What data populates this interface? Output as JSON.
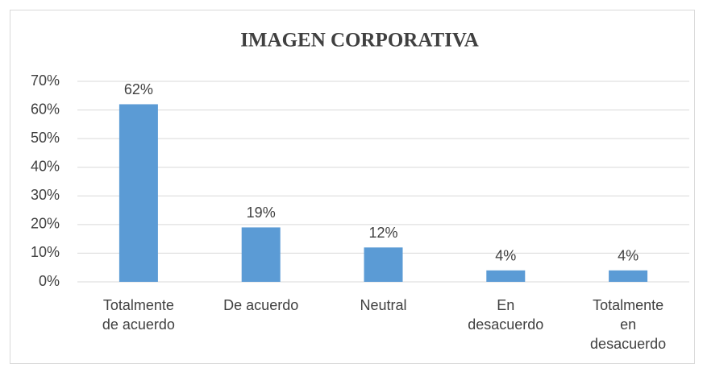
{
  "chart_data": {
    "type": "bar",
    "title": "IMAGEN CORPORATIVA",
    "categories": [
      "Totalmente de acuerdo",
      "De acuerdo",
      "Neutral",
      "En desacuerdo",
      "Totalmente en desacuerdo"
    ],
    "values": [
      62,
      19,
      12,
      4,
      4
    ],
    "value_labels": [
      "62%",
      "19%",
      "12%",
      "4%",
      "4%"
    ],
    "color": "#5b9bd5",
    "ylim": [
      0,
      70
    ],
    "yticks": [
      {
        "value": 0,
        "label": "0%"
      },
      {
        "value": 10,
        "label": "10%"
      },
      {
        "value": 20,
        "label": "20%"
      },
      {
        "value": 30,
        "label": "30%"
      },
      {
        "value": 40,
        "label": "40%"
      },
      {
        "value": 50,
        "label": "50%"
      },
      {
        "value": 60,
        "label": "60%"
      },
      {
        "value": 70,
        "label": "70%"
      }
    ],
    "grid": true
  }
}
